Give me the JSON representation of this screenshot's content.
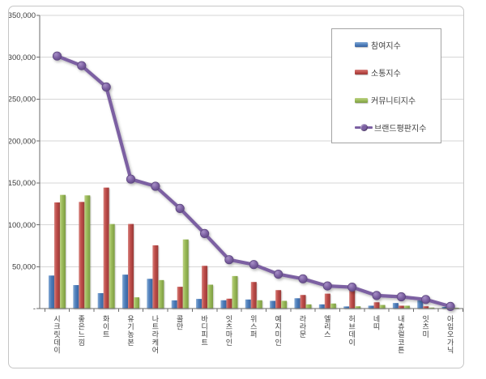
{
  "chart_data": {
    "type": "combo-bar-line",
    "title": "",
    "categories": [
      "시크릿데이",
      "좋은느낌",
      "화이트",
      "유기농본",
      "나트라케어",
      "콜만",
      "바디피트",
      "잇츠마인",
      "위스퍼",
      "예지미인",
      "라라문",
      "엘리스",
      "허브데이",
      "네띠",
      "내츄럴코튼",
      "잇츠미",
      "아임오가닉"
    ],
    "series": [
      {
        "name": "참여지수",
        "type": "bar",
        "color": "#4D7EBB",
        "gradient": [
          "#85AAD4",
          "#4D7EBB",
          "#3A639E"
        ],
        "values": [
          39400,
          28000,
          18400,
          40500,
          35500,
          9800,
          11500,
          9900,
          10800,
          9200,
          12300,
          5000,
          2500,
          3400,
          6600,
          9700,
          2000
        ]
      },
      {
        "name": "소통지수",
        "type": "bar",
        "color": "#BE4B48",
        "gradient": [
          "#D5807B",
          "#BE4B48",
          "#983B39"
        ],
        "values": [
          126700,
          127300,
          144400,
          101000,
          75500,
          26000,
          51000,
          11800,
          31700,
          22000,
          16200,
          17800,
          22700,
          7500,
          3400,
          2700,
          1200
        ]
      },
      {
        "name": "커뮤니티지수",
        "type": "bar",
        "color": "#9ABA58",
        "gradient": [
          "#BCD184",
          "#9ABA58",
          "#7C9B43"
        ],
        "values": [
          135700,
          135100,
          100900,
          13400,
          34000,
          82500,
          28500,
          38800,
          9900,
          9200,
          5000,
          6000,
          2700,
          4300,
          3400,
          1200,
          1000
        ]
      },
      {
        "name": "브랜드평판지수",
        "type": "line",
        "color": "#7C60A2",
        "gradient": [
          "#A78FC6",
          "#7C60A2",
          "#5E4880"
        ],
        "values": [
          301500,
          290000,
          264500,
          154500,
          146000,
          119500,
          89500,
          58300,
          52500,
          41000,
          35500,
          27000,
          25500,
          15600,
          14000,
          10800,
          2500
        ]
      }
    ],
    "ylim": [
      0,
      350000
    ],
    "ytick_interval": 50000,
    "ytick_labels": [
      "-",
      "50,000",
      "100,000",
      "150,000",
      "200,000",
      "250,000",
      "300,000",
      "350,000"
    ],
    "grid": "horizontal-gridlines",
    "legend_position": "inside-top-right"
  },
  "colors": {
    "background": "#FFFFFF",
    "frame_border": "#C6C6C6",
    "gridline": "#D6D6D6",
    "axis": "#6B6B6B",
    "tick_label": "#3C3C3C",
    "legend_border": "#A3A3A3"
  }
}
